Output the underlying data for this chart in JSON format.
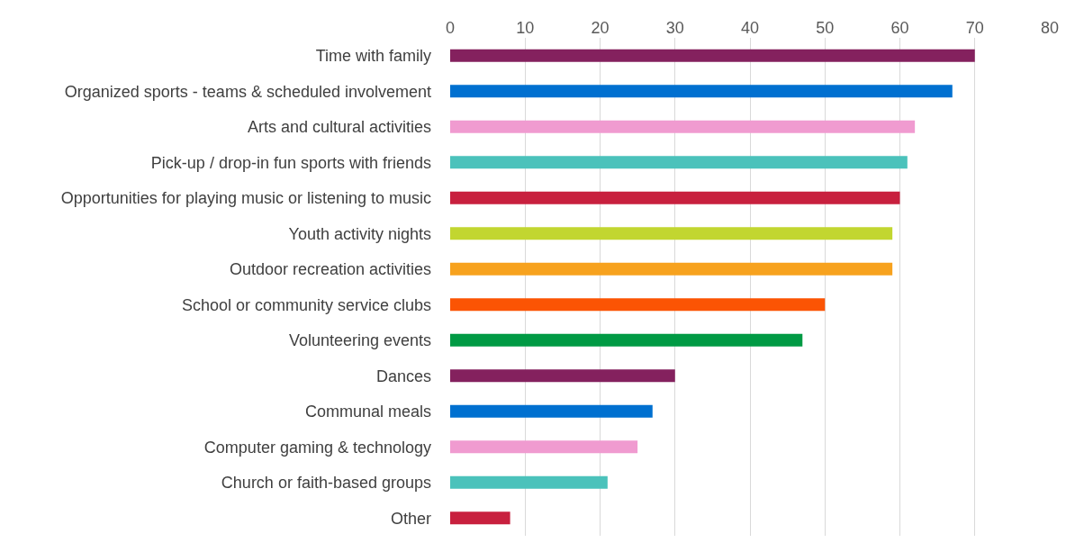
{
  "chart_data": {
    "type": "bar",
    "orientation": "horizontal",
    "categories": [
      "Time with family",
      "Organized sports - teams & scheduled involvement",
      "Arts and cultural activities",
      "Pick-up / drop-in fun sports with friends",
      "Opportunities for playing music or listening to music",
      "Youth activity nights",
      "Outdoor recreation activities",
      "School or community service clubs",
      "Volunteering events",
      "Dances",
      "Communal meals",
      "Computer gaming & technology",
      "Church or faith-based groups",
      "Other"
    ],
    "values": [
      70,
      67,
      62,
      61,
      60,
      59,
      59,
      50,
      47,
      30,
      27,
      25,
      21,
      8
    ],
    "colors": [
      "#84215e",
      "#0070d0",
      "#f09bd0",
      "#4bc2bb",
      "#c8203e",
      "#c2d630",
      "#f7a21e",
      "#fb5404",
      "#009a44",
      "#84215e",
      "#0070d0",
      "#f09bd0",
      "#4bc2bb",
      "#c8203e"
    ],
    "xlim": [
      0,
      80
    ],
    "xticks": [
      0,
      10,
      20,
      30,
      40,
      50,
      60,
      70,
      80
    ],
    "grid": "x"
  }
}
